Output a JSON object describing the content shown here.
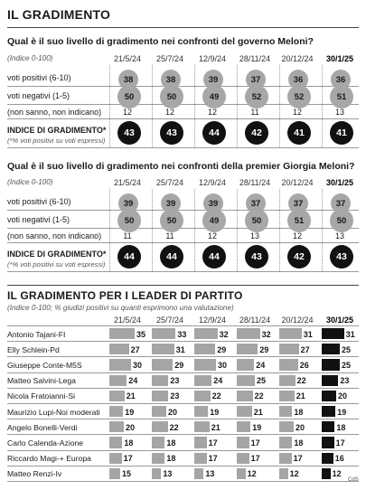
{
  "section1": {
    "title": "IL GRADIMENTO",
    "question": "Qual è il suo livello di gradimento nei confronti del governo Meloni?",
    "note": "(Indice 0-100)",
    "dates": [
      "21/5/24",
      "25/7/24",
      "12/9/24",
      "28/11/24",
      "20/12/24",
      "30/1/25"
    ],
    "labels": {
      "positive": "voti positivi (6-10)",
      "negative": "voti negativi (1-5)",
      "dontknow": "(non sanno, non indicano)",
      "index": "INDICE DI GRADIMENTO*",
      "index_note": "(*% voti positivi su voti espressi)"
    }
  },
  "section2": {
    "question": "Qual è il suo livello di gradimento nei confronti della premier Giorgia Meloni?",
    "note": "(Indice 0-100)",
    "dates": [
      "21/5/24",
      "25/7/24",
      "12/9/24",
      "28/11/24",
      "20/12/24",
      "30/1/25"
    ],
    "labels": {
      "positive": "voti positivi (6-10)",
      "negative": "voti negativi (1-5)",
      "dontknow": "(non sanno, non indicano)",
      "index": "INDICE DI GRADIMENTO*",
      "index_note": "(*% voti positivi su voti espressi)"
    }
  },
  "section3": {
    "title": "IL GRADIMENTO PER I LEADER DI PARTITO",
    "note": "(Indice 0-100; % giudizi positivi su quanti esprimono una valutazione)",
    "dates": [
      "21/5/24",
      "25/7/24",
      "12/9/24",
      "28/11/24",
      "20/12/24",
      "30/1/25"
    ]
  },
  "credit": "CdS",
  "chart_data": [
    {
      "type": "table",
      "title": "Qual è il suo livello di gradimento nei confronti del governo Meloni?",
      "categories": [
        "21/5/24",
        "25/7/24",
        "12/9/24",
        "28/11/24",
        "20/12/24",
        "30/1/25"
      ],
      "series": [
        {
          "name": "voti positivi (6-10)",
          "values": [
            38,
            38,
            39,
            37,
            36,
            36
          ]
        },
        {
          "name": "voti negativi (1-5)",
          "values": [
            50,
            50,
            49,
            52,
            52,
            51
          ]
        },
        {
          "name": "(non sanno, non indicano)",
          "values": [
            12,
            12,
            12,
            11,
            12,
            13
          ]
        },
        {
          "name": "INDICE DI GRADIMENTO*",
          "values": [
            43,
            43,
            44,
            42,
            41,
            41
          ]
        }
      ]
    },
    {
      "type": "table",
      "title": "Qual è il suo livello di gradimento nei confronti della premier Giorgia Meloni?",
      "categories": [
        "21/5/24",
        "25/7/24",
        "12/9/24",
        "28/11/24",
        "20/12/24",
        "30/1/25"
      ],
      "series": [
        {
          "name": "voti positivi (6-10)",
          "values": [
            39,
            39,
            39,
            37,
            37,
            37
          ]
        },
        {
          "name": "voti negativi (1-5)",
          "values": [
            50,
            50,
            49,
            50,
            51,
            50
          ]
        },
        {
          "name": "(non sanno, non indicano)",
          "values": [
            11,
            11,
            12,
            13,
            12,
            13
          ]
        },
        {
          "name": "INDICE DI GRADIMENTO*",
          "values": [
            44,
            44,
            44,
            43,
            42,
            43
          ]
        }
      ]
    },
    {
      "type": "bar",
      "title": "IL GRADIMENTO PER I LEADER DI PARTITO",
      "categories": [
        "21/5/24",
        "25/7/24",
        "12/9/24",
        "28/11/24",
        "20/12/24",
        "30/1/25"
      ],
      "series": [
        {
          "name": "Antonio Tajani-FI",
          "values": [
            35,
            33,
            32,
            32,
            31,
            31
          ]
        },
        {
          "name": "Elly Schlein-Pd",
          "values": [
            27,
            31,
            29,
            29,
            27,
            25
          ]
        },
        {
          "name": "Giuseppe Conte-M5S",
          "values": [
            30,
            29,
            30,
            24,
            26,
            25
          ]
        },
        {
          "name": "Matteo Salvini-Lega",
          "values": [
            24,
            23,
            24,
            25,
            22,
            23
          ]
        },
        {
          "name": "Nicola Fratoianni-Si",
          "values": [
            21,
            23,
            22,
            22,
            21,
            20
          ]
        },
        {
          "name": "Maurizio Lupi-Noi moderati",
          "values": [
            19,
            20,
            19,
            21,
            18,
            19
          ]
        },
        {
          "name": "Angelo Bonelli-Verdi",
          "values": [
            20,
            22,
            21,
            19,
            20,
            18
          ]
        },
        {
          "name": "Carlo Calenda-Azione",
          "values": [
            18,
            18,
            17,
            17,
            18,
            17
          ]
        },
        {
          "name": "Riccardo Magi-+ Europa",
          "values": [
            17,
            18,
            17,
            17,
            17,
            16
          ]
        },
        {
          "name": "Matteo Renzi-Iv",
          "values": [
            15,
            13,
            13,
            12,
            12,
            12
          ]
        }
      ]
    }
  ]
}
